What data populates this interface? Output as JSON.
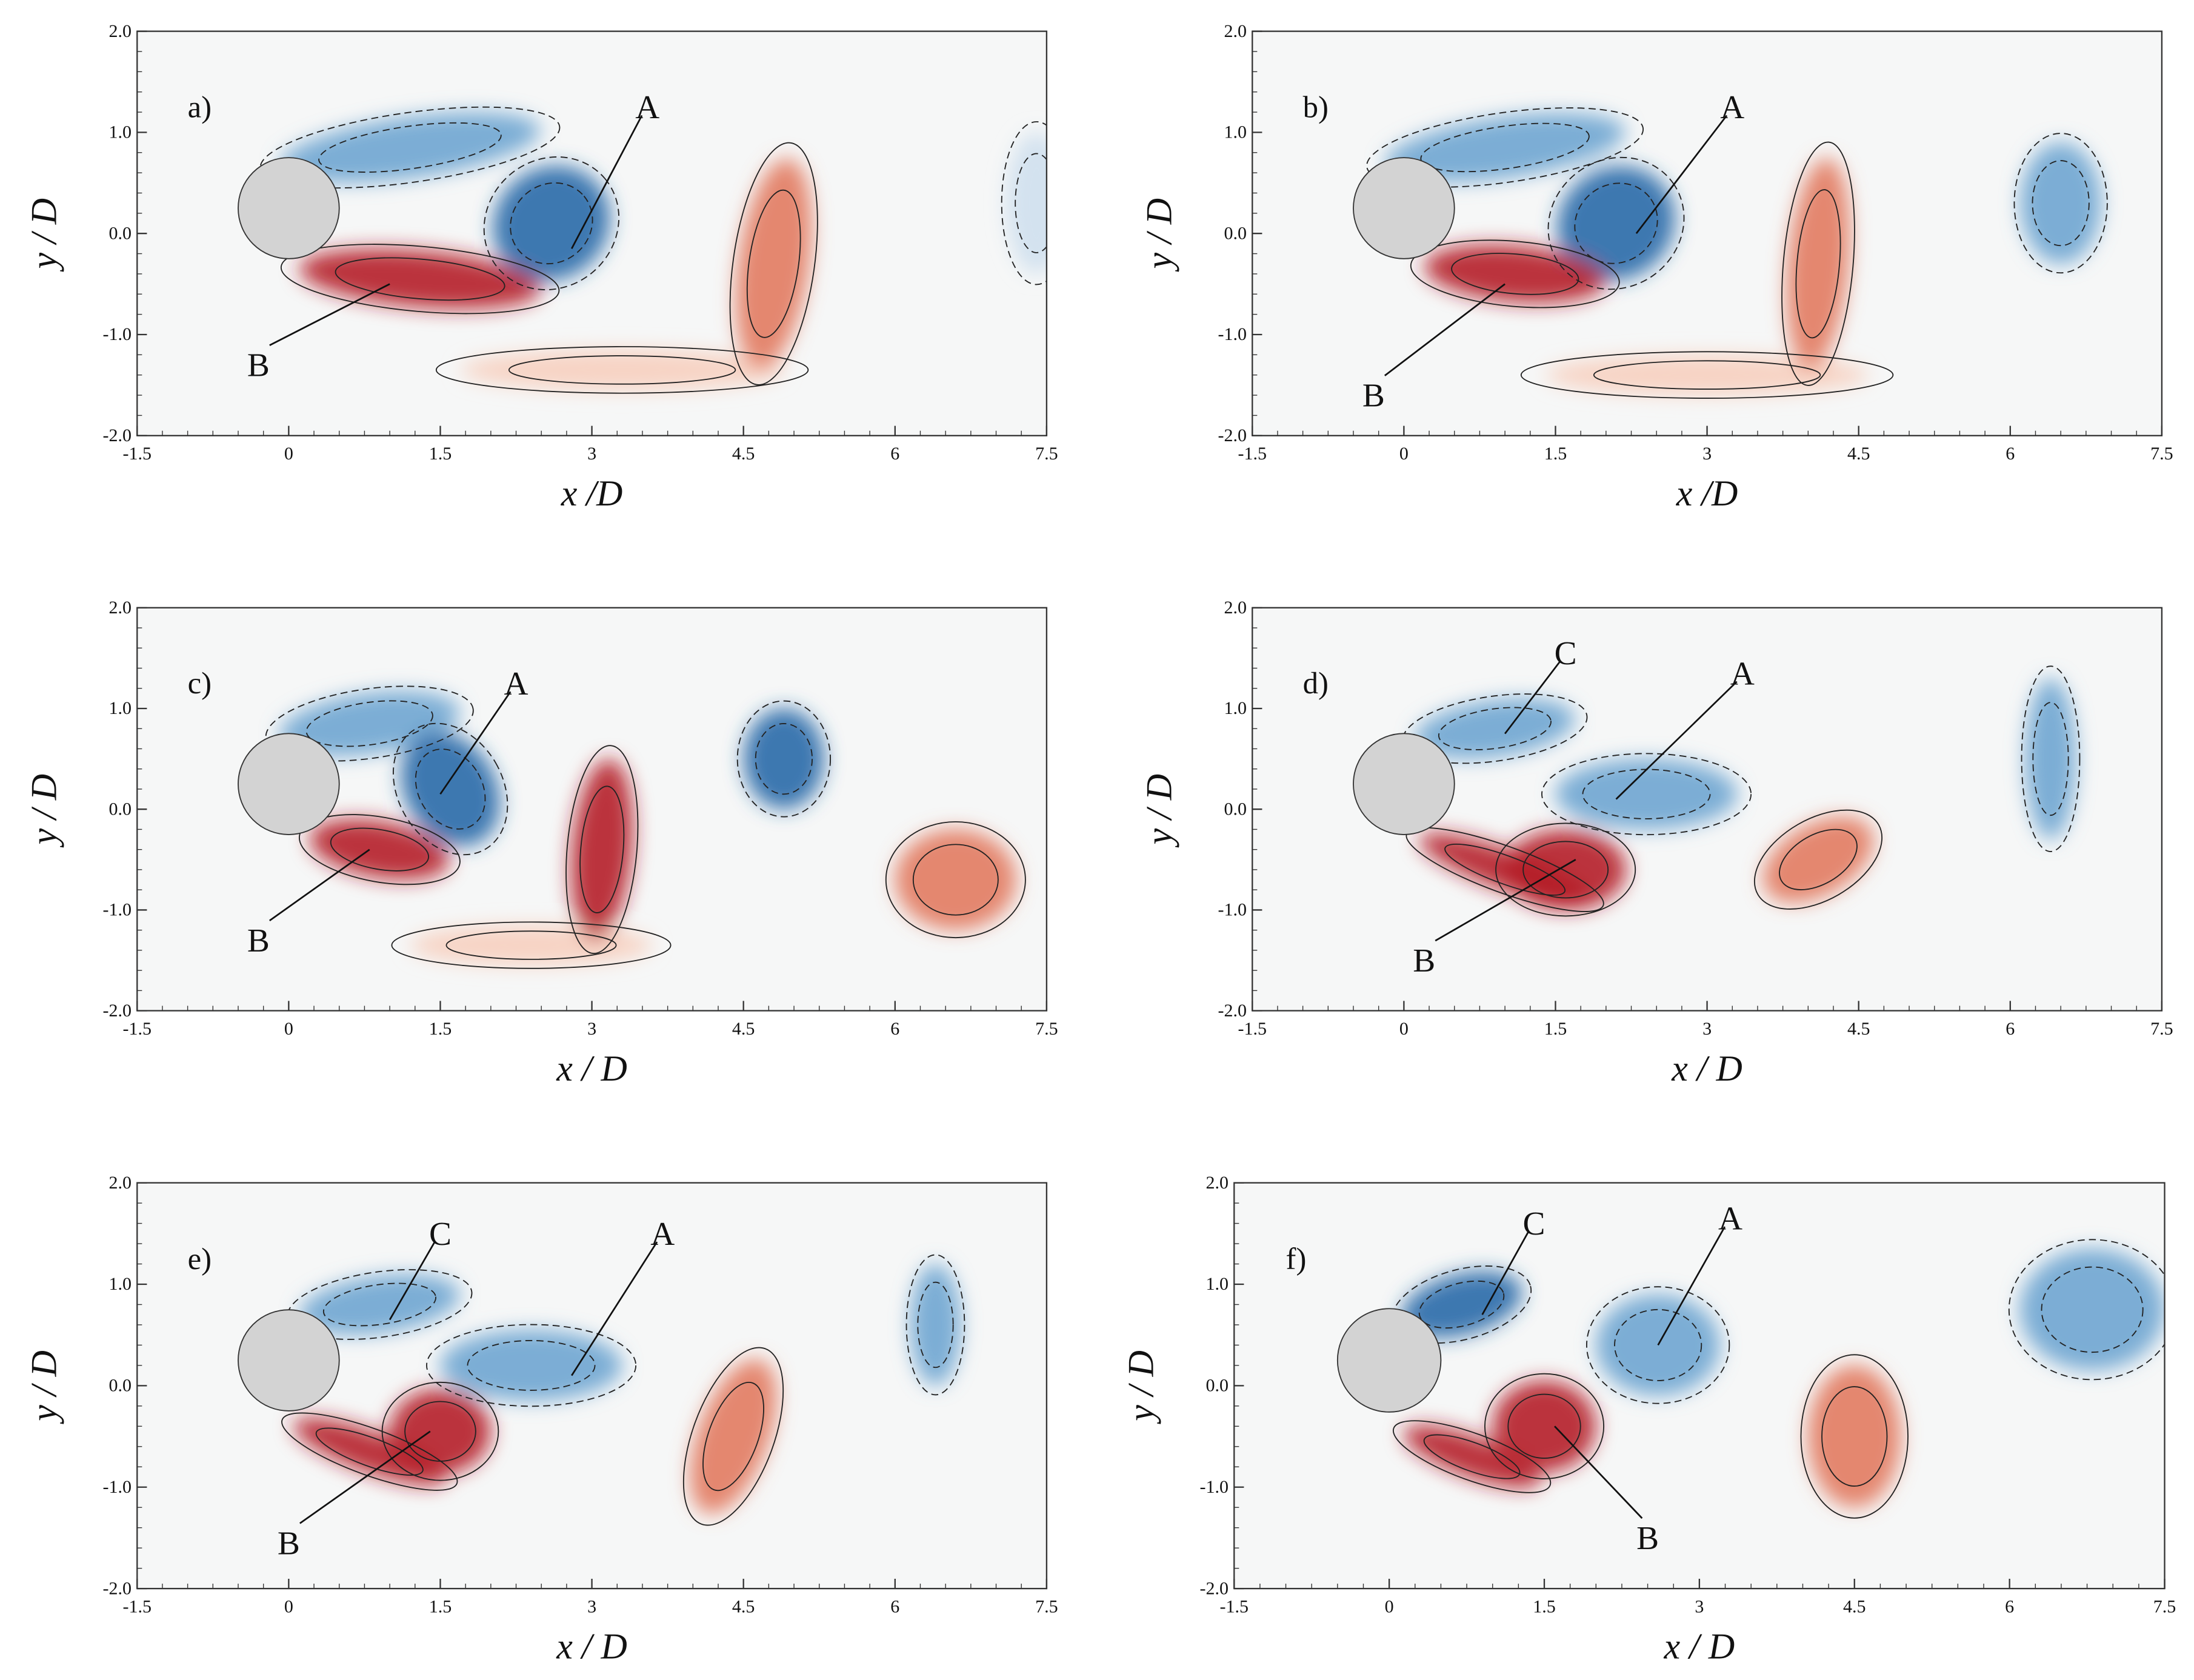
{
  "chart_data": [
    {
      "type": "contour",
      "panel_label": "a)",
      "xlabel": "x /D",
      "ylabel": "y / D",
      "xlim": [
        -1.5,
        7.5
      ],
      "ylim": [
        -2,
        2
      ],
      "xticks": [
        -1.5,
        0,
        1.5,
        3,
        4.5,
        6,
        7.5
      ],
      "yticks": [
        {
          "value": -2,
          "label": "-2.0"
        },
        {
          "value": -1,
          "label": "-1.0"
        },
        {
          "value": 0,
          "label": "0.0"
        },
        {
          "value": 1,
          "label": "1.0"
        },
        {
          "value": 2,
          "label": "2.0"
        }
      ],
      "annotations": [
        "A",
        "B"
      ]
    },
    {
      "type": "contour",
      "panel_label": "b)",
      "xlabel": "x /D",
      "ylabel": "y / D",
      "xlim": [
        -1.5,
        7.5
      ],
      "ylim": [
        -2,
        2
      ],
      "xticks": [
        -1.5,
        0,
        1.5,
        3,
        4.5,
        6,
        7.5
      ],
      "yticks": [
        {
          "value": -2,
          "label": "-2.0"
        },
        {
          "value": -1,
          "label": "-1.0"
        },
        {
          "value": 0,
          "label": "0.0"
        },
        {
          "value": 1,
          "label": "1.0"
        },
        {
          "value": 2,
          "label": "2.0"
        }
      ],
      "annotations": [
        "A",
        "B"
      ]
    },
    {
      "type": "contour",
      "panel_label": "c)",
      "xlabel": "x / D",
      "ylabel": "y / D",
      "xlim": [
        -1.5,
        7.5
      ],
      "ylim": [
        -2,
        2
      ],
      "xticks": [
        -1.5,
        0,
        1.5,
        3,
        4.5,
        6,
        7.5
      ],
      "yticks": [
        {
          "value": -2,
          "label": "-2.0"
        },
        {
          "value": -1,
          "label": "-1.0"
        },
        {
          "value": 0,
          "label": "0.0"
        },
        {
          "value": 1,
          "label": "1.0"
        },
        {
          "value": 2,
          "label": "2.0"
        }
      ],
      "annotations": [
        "A",
        "B"
      ]
    },
    {
      "type": "contour",
      "panel_label": "d)",
      "xlabel": "x / D",
      "ylabel": "y / D",
      "xlim": [
        -1.5,
        7.5
      ],
      "ylim": [
        -2,
        2
      ],
      "xticks": [
        -1.5,
        0,
        1.5,
        3,
        4.5,
        6,
        7.5
      ],
      "yticks": [
        {
          "value": -2,
          "label": "-2.0"
        },
        {
          "value": -1,
          "label": "-1.0"
        },
        {
          "value": 0,
          "label": "0.0"
        },
        {
          "value": 1,
          "label": "1.0"
        },
        {
          "value": 2,
          "label": "2.0"
        }
      ],
      "annotations": [
        "C",
        "A",
        "B"
      ]
    },
    {
      "type": "contour",
      "panel_label": "e)",
      "xlabel": "x / D",
      "ylabel": "y / D",
      "xlim": [
        -1.5,
        7.5
      ],
      "ylim": [
        -2,
        2
      ],
      "xticks": [
        -1.5,
        0,
        1.5,
        3,
        4.5,
        6,
        7.5
      ],
      "yticks": [
        {
          "value": -2,
          "label": "-2.0"
        },
        {
          "value": -1,
          "label": "-1.0"
        },
        {
          "value": 0,
          "label": "0.0"
        },
        {
          "value": 1,
          "label": "1.0"
        },
        {
          "value": 2,
          "label": "2.0"
        }
      ],
      "annotations": [
        "C",
        "A",
        "B"
      ]
    },
    {
      "type": "contour",
      "panel_label": "f)",
      "xlabel": "x / D",
      "ylabel": "y / D",
      "xlim": [
        -1.5,
        7.5
      ],
      "ylim": [
        -2,
        2
      ],
      "xticks": [
        -1.5,
        0,
        1.5,
        3,
        4.5,
        6,
        7.5
      ],
      "yticks": [
        {
          "value": -2,
          "label": "-2.0"
        },
        {
          "value": -1,
          "label": "-1.0"
        },
        {
          "value": 0,
          "label": "0.0"
        },
        {
          "value": 1,
          "label": "1.0"
        },
        {
          "value": 2,
          "label": "2.0"
        }
      ],
      "annotations": [
        "C",
        "A",
        "B"
      ]
    }
  ]
}
